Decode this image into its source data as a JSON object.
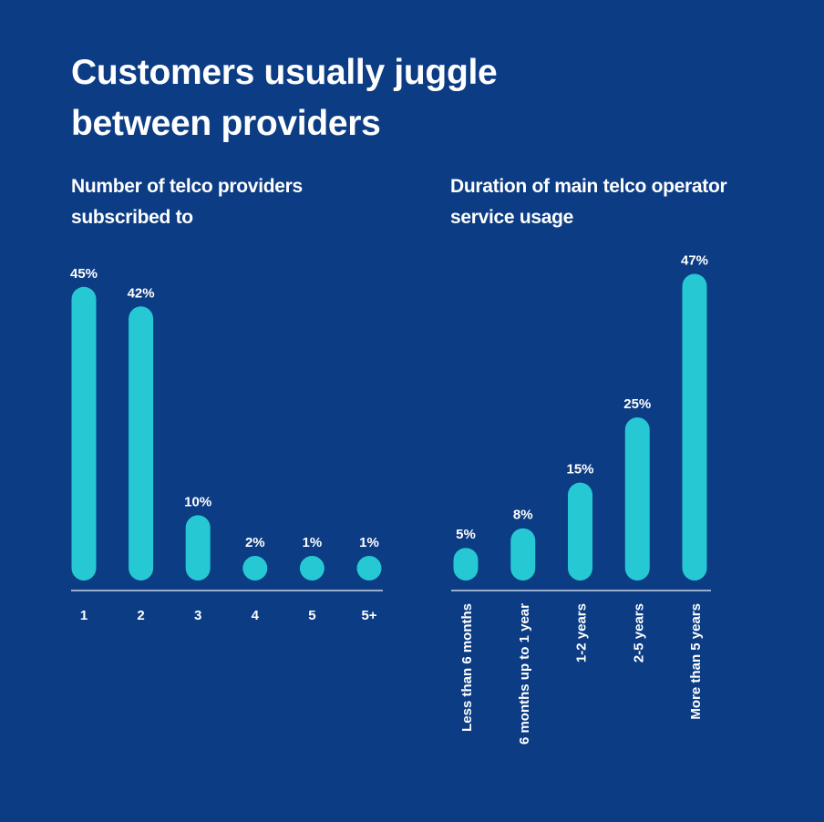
{
  "title": "Customers usually juggle between providers",
  "colors": {
    "background": "#0b3c84",
    "bar": "#26c9d3",
    "axis": "#c9d3e6",
    "text": "#ffffff"
  },
  "chart_data": [
    {
      "type": "bar",
      "title": "Number of telco providers subscribed to",
      "categories": [
        "1",
        "2",
        "3",
        "4",
        "5",
        "5+"
      ],
      "values": [
        45,
        42,
        10,
        2,
        1,
        1
      ],
      "data_labels": [
        "45%",
        "42%",
        "10%",
        "2%",
        "1%",
        "1%"
      ],
      "unit": "%",
      "ylim": [
        0,
        47
      ],
      "grid": false
    },
    {
      "type": "bar",
      "title": "Duration of main telco operator service usage",
      "categories": [
        "Less than 6 months",
        "6 months up to 1 year",
        "1-2 years",
        "2-5 years",
        "More than 5 years"
      ],
      "values": [
        5,
        8,
        15,
        25,
        47
      ],
      "data_labels": [
        "5%",
        "8%",
        "15%",
        "25%",
        "47%"
      ],
      "unit": "%",
      "ylim": [
        0,
        47
      ],
      "grid": false
    }
  ]
}
